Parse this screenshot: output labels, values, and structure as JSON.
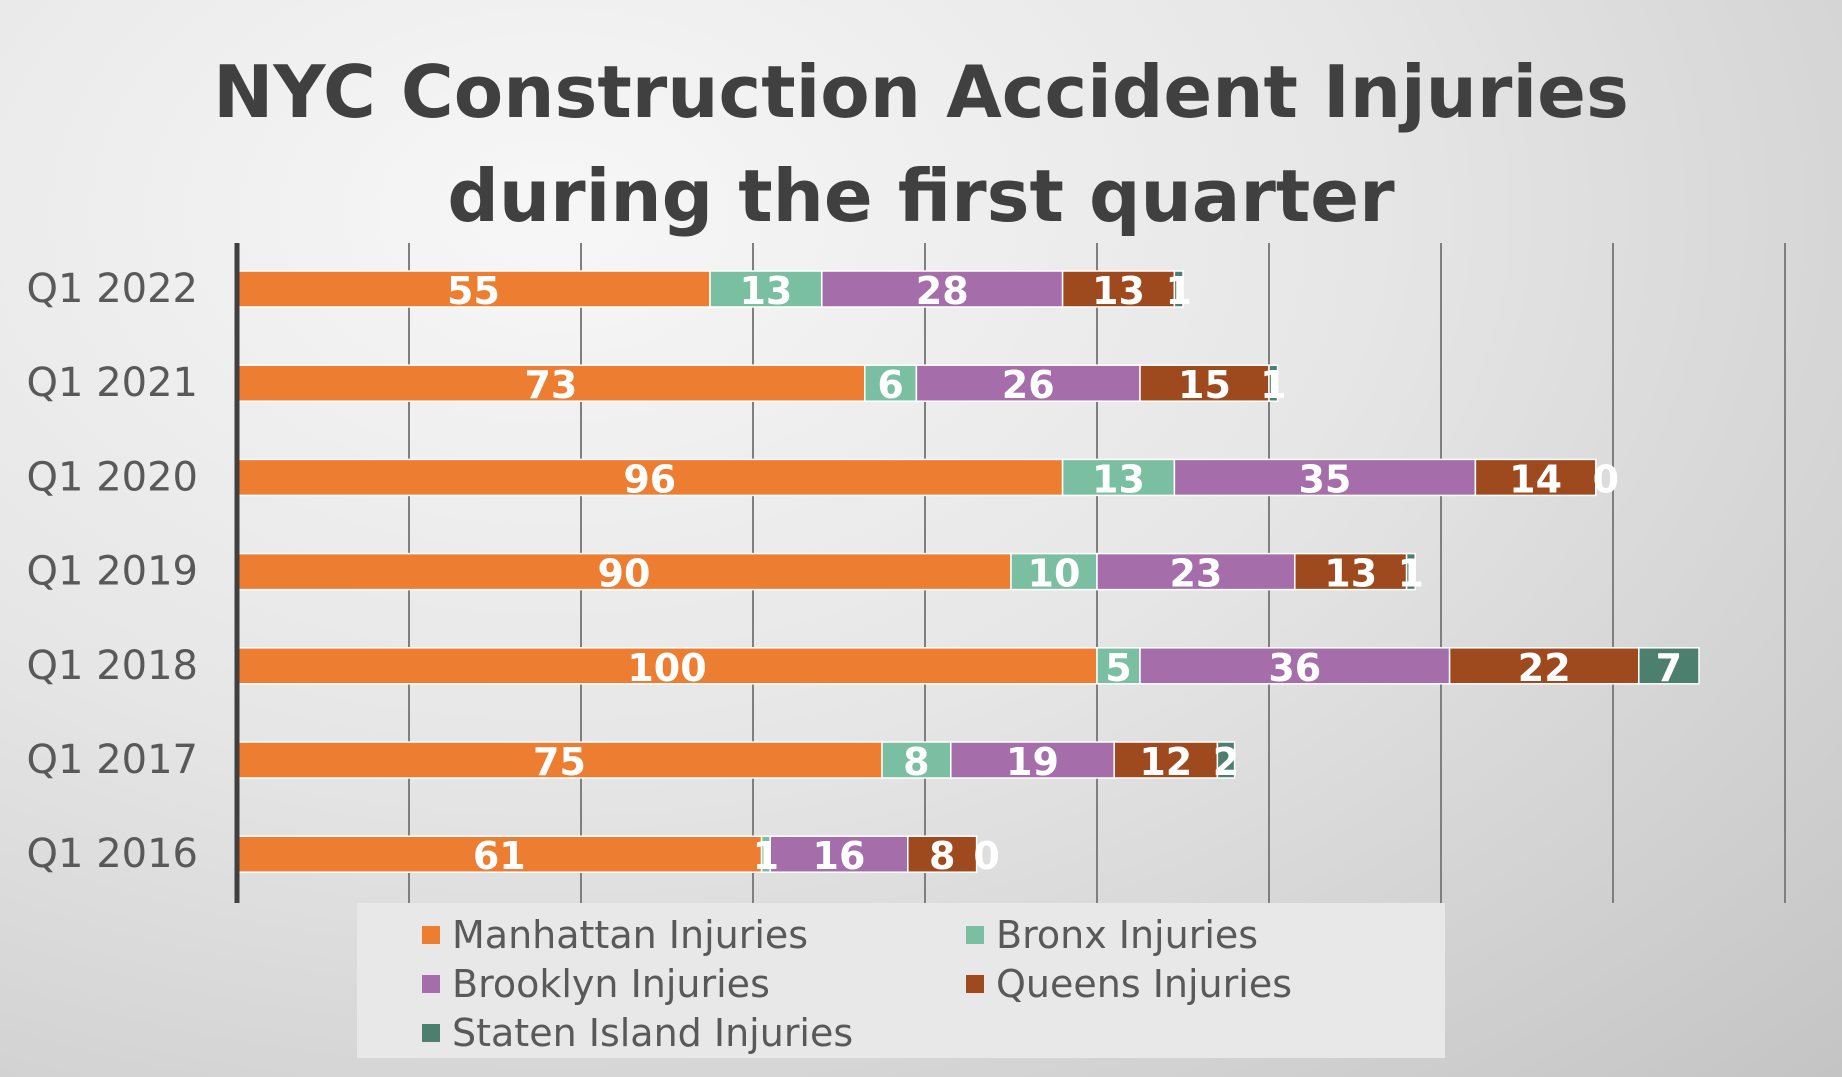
{
  "chart_data": {
    "type": "bar",
    "orientation": "horizontal",
    "stacked": true,
    "title": "NYC Construction Accident Injuries during the first quarter",
    "title_lines": [
      "NYC Construction Accident Injuries",
      "during the first quarter"
    ],
    "categories": [
      "Q1 2016",
      "Q1 2017",
      "Q1 2018",
      "Q1 2019",
      "Q1 2020",
      "Q1 2021",
      "Q1 2022"
    ],
    "xlim": [
      0,
      180
    ],
    "x_gridline_step": 20,
    "x_tick_labels_shown": false,
    "grid": true,
    "data_labels": true,
    "legend_position": "bottom",
    "series": [
      {
        "name": "Manhattan Injuries",
        "color": "#ED7D31",
        "values": [
          61,
          75,
          100,
          90,
          96,
          73,
          55
        ]
      },
      {
        "name": "Bronx Injuries",
        "color": "#7BBFA2",
        "values": [
          1,
          8,
          5,
          10,
          13,
          6,
          13
        ]
      },
      {
        "name": "Brooklyn Injuries",
        "color": "#A66DAB",
        "values": [
          16,
          19,
          36,
          23,
          35,
          26,
          28
        ]
      },
      {
        "name": "Queens Injuries",
        "color": "#9E4A1E",
        "values": [
          8,
          12,
          22,
          13,
          14,
          15,
          13
        ]
      },
      {
        "name": "Staten Island Injuries",
        "color": "#4D7F6E",
        "values": [
          0,
          2,
          7,
          1,
          0,
          1,
          1
        ]
      }
    ]
  }
}
